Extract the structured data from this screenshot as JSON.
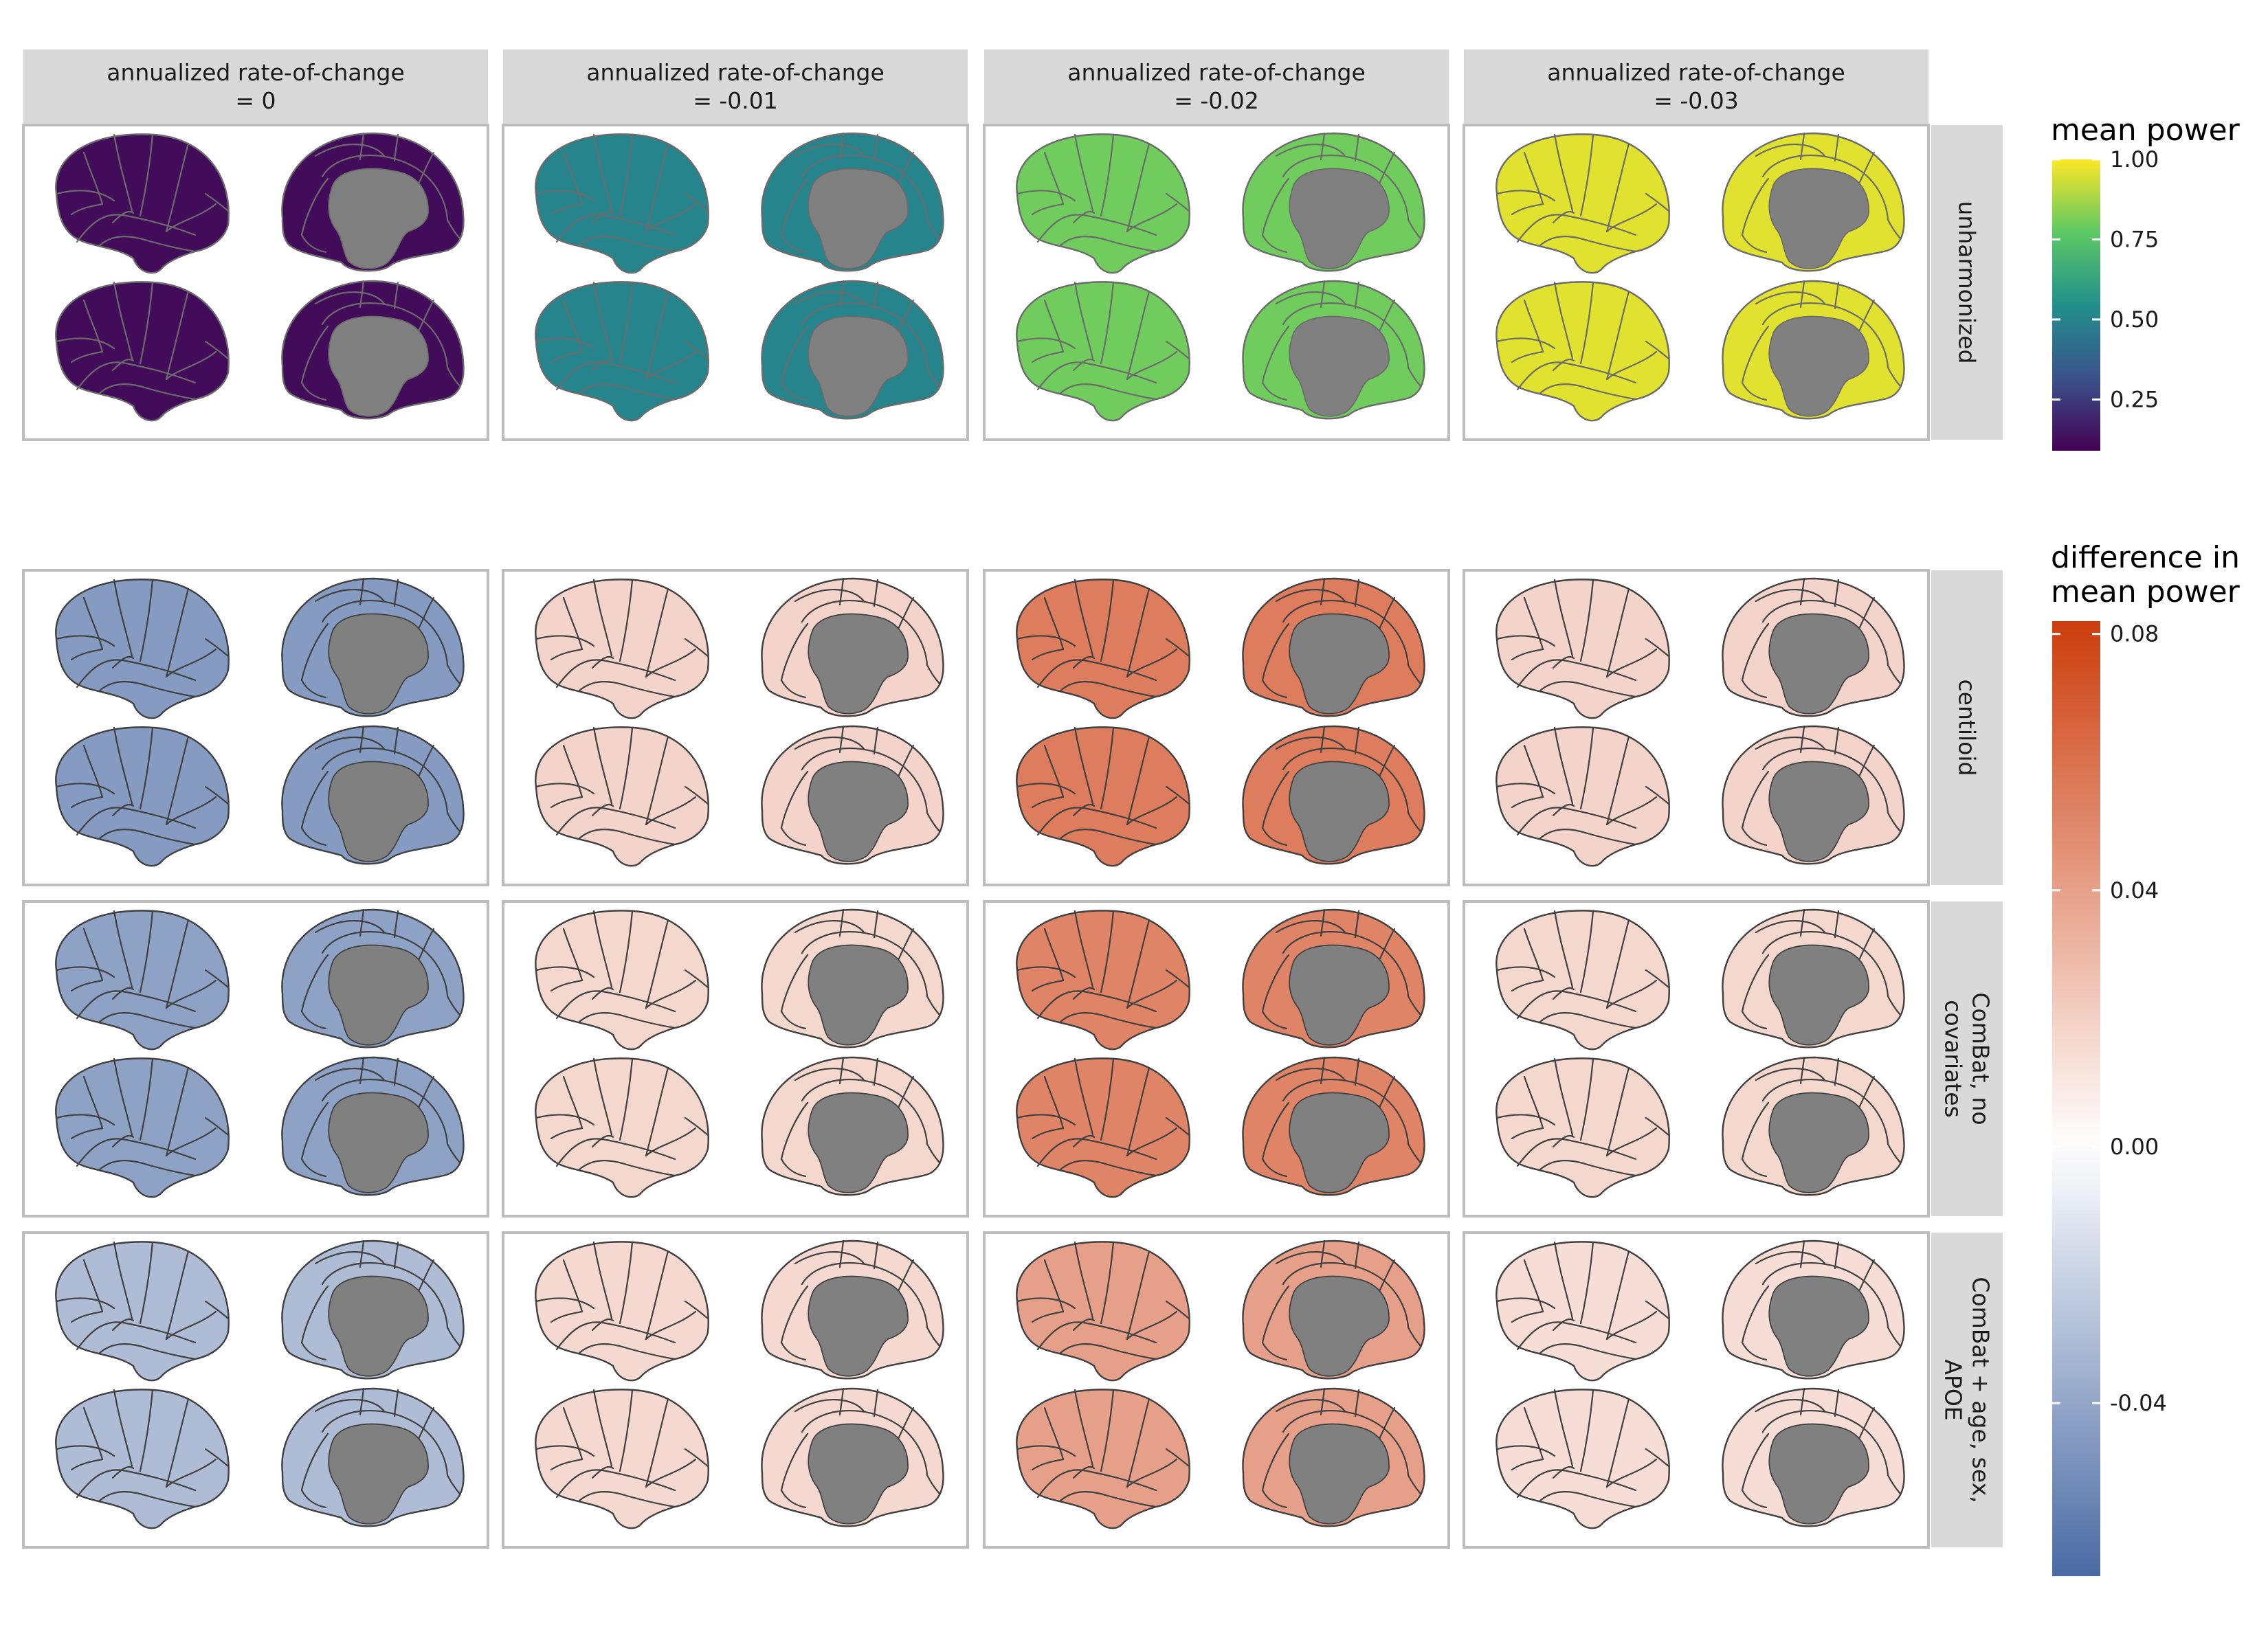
{
  "chart_data": {
    "type": "heatmap",
    "description_note": "",
    "columns": [
      {
        "line1": "annualized rate-of-change",
        "line2": "= 0"
      },
      {
        "line1": "annualized rate-of-change",
        "line2": "= -0.01"
      },
      {
        "line1": "annualized rate-of-change",
        "line2": "= -0.02"
      },
      {
        "line1": "annualized rate-of-change",
        "line2": "= -0.03"
      }
    ],
    "panel_groups": [
      {
        "rows": [
          {
            "lines": [
              "unharmonized"
            ],
            "scale": "power",
            "level": [
              0.12,
              0.5,
              0.8,
              0.96
            ]
          }
        ]
      },
      {
        "rows": [
          {
            "lines": [
              "centiloid"
            ],
            "scale": "diff",
            "level": [
              -0.045,
              0.018,
              0.055,
              0.018
            ]
          },
          {
            "lines": [
              "ComBat, no",
              "covariates"
            ],
            "scale": "diff",
            "level": [
              -0.042,
              0.017,
              0.052,
              0.017
            ]
          },
          {
            "lines": [
              "ComBat + age, sex,",
              "APOE"
            ],
            "scale": "diff",
            "level": [
              -0.03,
              0.016,
              0.04,
              0.014
            ]
          }
        ]
      }
    ],
    "legends": [
      {
        "title_lines": [
          "mean power"
        ],
        "scale": "power",
        "range": [
          0.09,
          1.0
        ],
        "ticks": [
          {
            "value": 1.0,
            "label": "1.00"
          },
          {
            "value": 0.75,
            "label": "0.75"
          },
          {
            "value": 0.5,
            "label": "0.50"
          },
          {
            "value": 0.25,
            "label": "0.25"
          }
        ],
        "colors": [
          "#440154",
          "#3b528b",
          "#21908c",
          "#5dc863",
          "#fde725"
        ]
      },
      {
        "title_lines": [
          "difference in",
          "mean power"
        ],
        "scale": "diff",
        "range": [
          -0.067,
          0.082
        ],
        "ticks": [
          {
            "value": 0.08,
            "label": "0.08"
          },
          {
            "value": 0.04,
            "label": "0.04"
          },
          {
            "value": 0.0,
            "label": "0.00"
          },
          {
            "value": -0.04,
            "label": "-0.04"
          }
        ],
        "colors": [
          "#4a6aa3",
          "#ffffff",
          "#cc3d0d"
        ]
      }
    ]
  }
}
